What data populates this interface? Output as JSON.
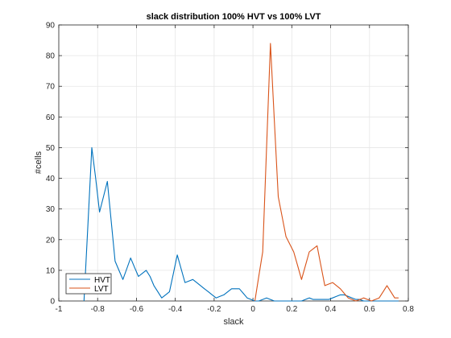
{
  "chart_data": {
    "type": "line",
    "title": "slack distribution 100% HVT vs 100% LVT",
    "xlabel": "slack",
    "ylabel": "#cells",
    "xlim": [
      -1,
      0.8
    ],
    "ylim": [
      0,
      90
    ],
    "xticks": [
      -1,
      -0.8,
      -0.6,
      -0.4,
      -0.2,
      0,
      0.2,
      0.4,
      0.6,
      0.8
    ],
    "xtick_labels": [
      "-1",
      "-0.8",
      "-0.6",
      "-0.4",
      "-0.2",
      "0",
      "0.2",
      "0.4",
      "0.6",
      "0.8"
    ],
    "yticks": [
      0,
      10,
      20,
      30,
      40,
      50,
      60,
      70,
      80,
      90
    ],
    "ytick_labels": [
      "0",
      "10",
      "20",
      "30",
      "40",
      "50",
      "60",
      "70",
      "80",
      "90"
    ],
    "grid": true,
    "legend_position": "bottom-left",
    "series": [
      {
        "name": "HVT",
        "color": "#0072BD",
        "x": [
          -0.87,
          -0.85,
          -0.83,
          -0.81,
          -0.79,
          -0.77,
          -0.75,
          -0.73,
          -0.71,
          -0.69,
          -0.67,
          -0.65,
          -0.63,
          -0.61,
          -0.59,
          -0.57,
          -0.55,
          -0.53,
          -0.51,
          -0.49,
          -0.47,
          -0.45,
          -0.43,
          -0.41,
          -0.39,
          -0.37,
          -0.35,
          -0.33,
          -0.31,
          -0.29,
          -0.27,
          -0.25,
          -0.23,
          -0.21,
          -0.19,
          -0.17,
          -0.15,
          -0.13,
          -0.11,
          -0.09,
          -0.07,
          -0.05,
          -0.03,
          -0.01,
          0.01,
          0.03,
          0.05,
          0.07,
          0.09,
          0.11,
          0.13,
          0.15,
          0.17,
          0.19,
          0.21,
          0.23,
          0.25,
          0.27,
          0.29,
          0.31,
          0.33,
          0.35,
          0.37,
          0.39,
          0.41,
          0.43,
          0.45,
          0.47,
          0.49,
          0.51,
          0.53,
          0.55,
          0.57,
          0.59,
          0.61,
          0.63,
          0.65,
          0.67,
          0.69,
          0.71,
          0.73,
          0.75
        ],
        "y": [
          0,
          25,
          50,
          40,
          29,
          34,
          39,
          26,
          13,
          10,
          7,
          10.5,
          14,
          11,
          8,
          9,
          10,
          8,
          5,
          3,
          1,
          2,
          3,
          9,
          15,
          10.5,
          6,
          6.5,
          7,
          6,
          5,
          4,
          3,
          2,
          1,
          1.5,
          2,
          3,
          4,
          4,
          4,
          2.5,
          1,
          0.5,
          0,
          0,
          0.5,
          1,
          0.5,
          0,
          0,
          0,
          0,
          0,
          0,
          0,
          0,
          0.5,
          1,
          0.5,
          0.5,
          0.5,
          0.5,
          0.5,
          1,
          1.5,
          2,
          2,
          1.5,
          1,
          0.5,
          0.5,
          0,
          0,
          0,
          0,
          0,
          0,
          0,
          0,
          0,
          0
        ]
      },
      {
        "name": "LVT",
        "color": "#D95319",
        "x": [
          0.01,
          0.03,
          0.05,
          0.07,
          0.09,
          0.11,
          0.13,
          0.15,
          0.17,
          0.19,
          0.21,
          0.23,
          0.25,
          0.27,
          0.29,
          0.31,
          0.33,
          0.35,
          0.37,
          0.39,
          0.41,
          0.43,
          0.45,
          0.47,
          0.49,
          0.51,
          0.53,
          0.55,
          0.57,
          0.59,
          0.61,
          0.63,
          0.65,
          0.67,
          0.69,
          0.71,
          0.73,
          0.75
        ],
        "y": [
          0,
          8,
          16,
          50,
          84,
          59,
          34,
          27.5,
          21,
          18.5,
          16,
          11.5,
          7,
          11.5,
          16,
          17,
          18,
          11.5,
          5,
          5.5,
          6,
          5,
          4,
          2.5,
          1,
          0.5,
          0,
          0.5,
          1,
          0.5,
          0,
          0.5,
          1,
          3,
          5,
          3,
          1,
          1
        ]
      }
    ]
  }
}
